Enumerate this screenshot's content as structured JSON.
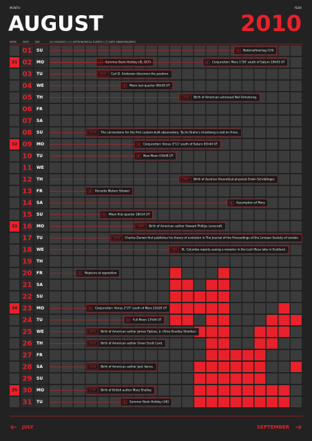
{
  "header": {
    "month_label": "MONTH",
    "month": "AUGUST",
    "year_label": "YEAR",
    "year": "2010"
  },
  "columns": {
    "week": "WEEK",
    "date": "DATE",
    "day": "DAY",
    "events": "(S) HOLIDAYS / (+) ASTRONOMICAL EVENTS / (T) DATE ANNIVERSARIES"
  },
  "days": [
    {
      "date": "01",
      "day": "SU",
      "events": [
        {
          "text": "Nationalfeiertag (CH)"
        }
      ]
    },
    {
      "week": "31",
      "date": "02",
      "day": "MO",
      "events": [
        {
          "text": "Summer Bank Holiday (IE, SCT)"
        },
        {
          "text": "Conjunction: Mars 1°50' south of Saturn 19h43 UT"
        }
      ]
    },
    {
      "date": "03",
      "day": "TU",
      "events": [
        {
          "year": "1932",
          "text": "Carl D. Anderson discovers the positron."
        }
      ]
    },
    {
      "date": "04",
      "day": "WE",
      "events": [
        {
          "text": "Moon last quarter 06h59 UT"
        }
      ]
    },
    {
      "date": "05",
      "day": "TH",
      "events": [
        {
          "year": "1930",
          "text": "Birth of American astronaut Neil Armstrong."
        }
      ]
    },
    {
      "date": "06",
      "day": "FR"
    },
    {
      "date": "07",
      "day": "SA"
    },
    {
      "date": "08",
      "day": "SU",
      "events": [
        {
          "year": "1576",
          "text": "The cornerstone for the first custom-built observatory, Tycho Brahe's Uraniborg is laid on Hven."
        }
      ]
    },
    {
      "week": "32",
      "date": "09",
      "day": "MO",
      "events": [
        {
          "text": "Conjunction: Venus 3°11' south of Saturn 01h44 UT"
        }
      ]
    },
    {
      "date": "10",
      "day": "TU",
      "events": [
        {
          "text": "New Moon 03h08 UT"
        }
      ]
    },
    {
      "date": "11",
      "day": "WE"
    },
    {
      "date": "12",
      "day": "TH",
      "events": [
        {
          "year": "1887",
          "text": "Birth of Austrian theoretical physicist Erwin Schrödinger."
        }
      ]
    },
    {
      "date": "13",
      "day": "FR",
      "events": [
        {
          "text": "Perseids Meteor Shower"
        }
      ]
    },
    {
      "date": "14",
      "day": "SA",
      "events": [
        {
          "text": "Assumption of Mary"
        }
      ]
    },
    {
      "date": "15",
      "day": "SU",
      "events": [
        {
          "text": "Moon first quarter 18h14 UT"
        }
      ]
    },
    {
      "week": "33",
      "date": "16",
      "day": "MO",
      "events": [
        {
          "year": "1890",
          "text": "Birth of American author Howard Phillips Lovecraft."
        }
      ]
    },
    {
      "date": "17",
      "day": "TU",
      "events": [
        {
          "year": "1858",
          "text": "Charles Darwin first publishes his theory of evolution in The Journal of the Proceedings of the Linnean Society of London."
        }
      ]
    },
    {
      "date": "18",
      "day": "WE",
      "events": [
        {
          "year": "565",
          "text": "St. Columba reports seeing a monster in the Loch Ness lake in Scotland."
        }
      ]
    },
    {
      "date": "19",
      "day": "TH"
    },
    {
      "date": "20",
      "day": "FR",
      "events": [
        {
          "text": "Neptune at opposition"
        }
      ]
    },
    {
      "date": "21",
      "day": "SA"
    },
    {
      "date": "22",
      "day": "SU"
    },
    {
      "week": "34",
      "date": "23",
      "day": "MO",
      "events": [
        {
          "text": "Conjunction: Venus 2°27' south of Mars 21h29 UT"
        }
      ]
    },
    {
      "date": "24",
      "day": "TU",
      "events": [
        {
          "text": "Full Moon 17h04 UT"
        }
      ]
    },
    {
      "date": "25",
      "day": "WE",
      "events": [
        {
          "year": "1915",
          "text": "Birth of American author James Tiptree, Jr. (Alice Bradley Sheldon)"
        }
      ]
    },
    {
      "date": "26",
      "day": "TH",
      "events": [
        {
          "year": "1931",
          "text": "Birth of American author Orson Scott Card."
        }
      ]
    },
    {
      "date": "27",
      "day": "FR"
    },
    {
      "date": "28",
      "day": "SA",
      "events": [
        {
          "year": "1916",
          "text": "Birth of American author Jack Vance."
        }
      ]
    },
    {
      "date": "29",
      "day": "SU"
    },
    {
      "week": "35",
      "date": "30",
      "day": "MO",
      "events": [
        {
          "year": "1797",
          "text": "Birth of British author Mary Shelley."
        }
      ]
    },
    {
      "date": "31",
      "day": "TU",
      "events": [
        {
          "text": "Summer Bank Holiday (UK)"
        }
      ]
    }
  ],
  "footer": {
    "prev": "JULY",
    "next": "SEPTEMBER"
  }
}
